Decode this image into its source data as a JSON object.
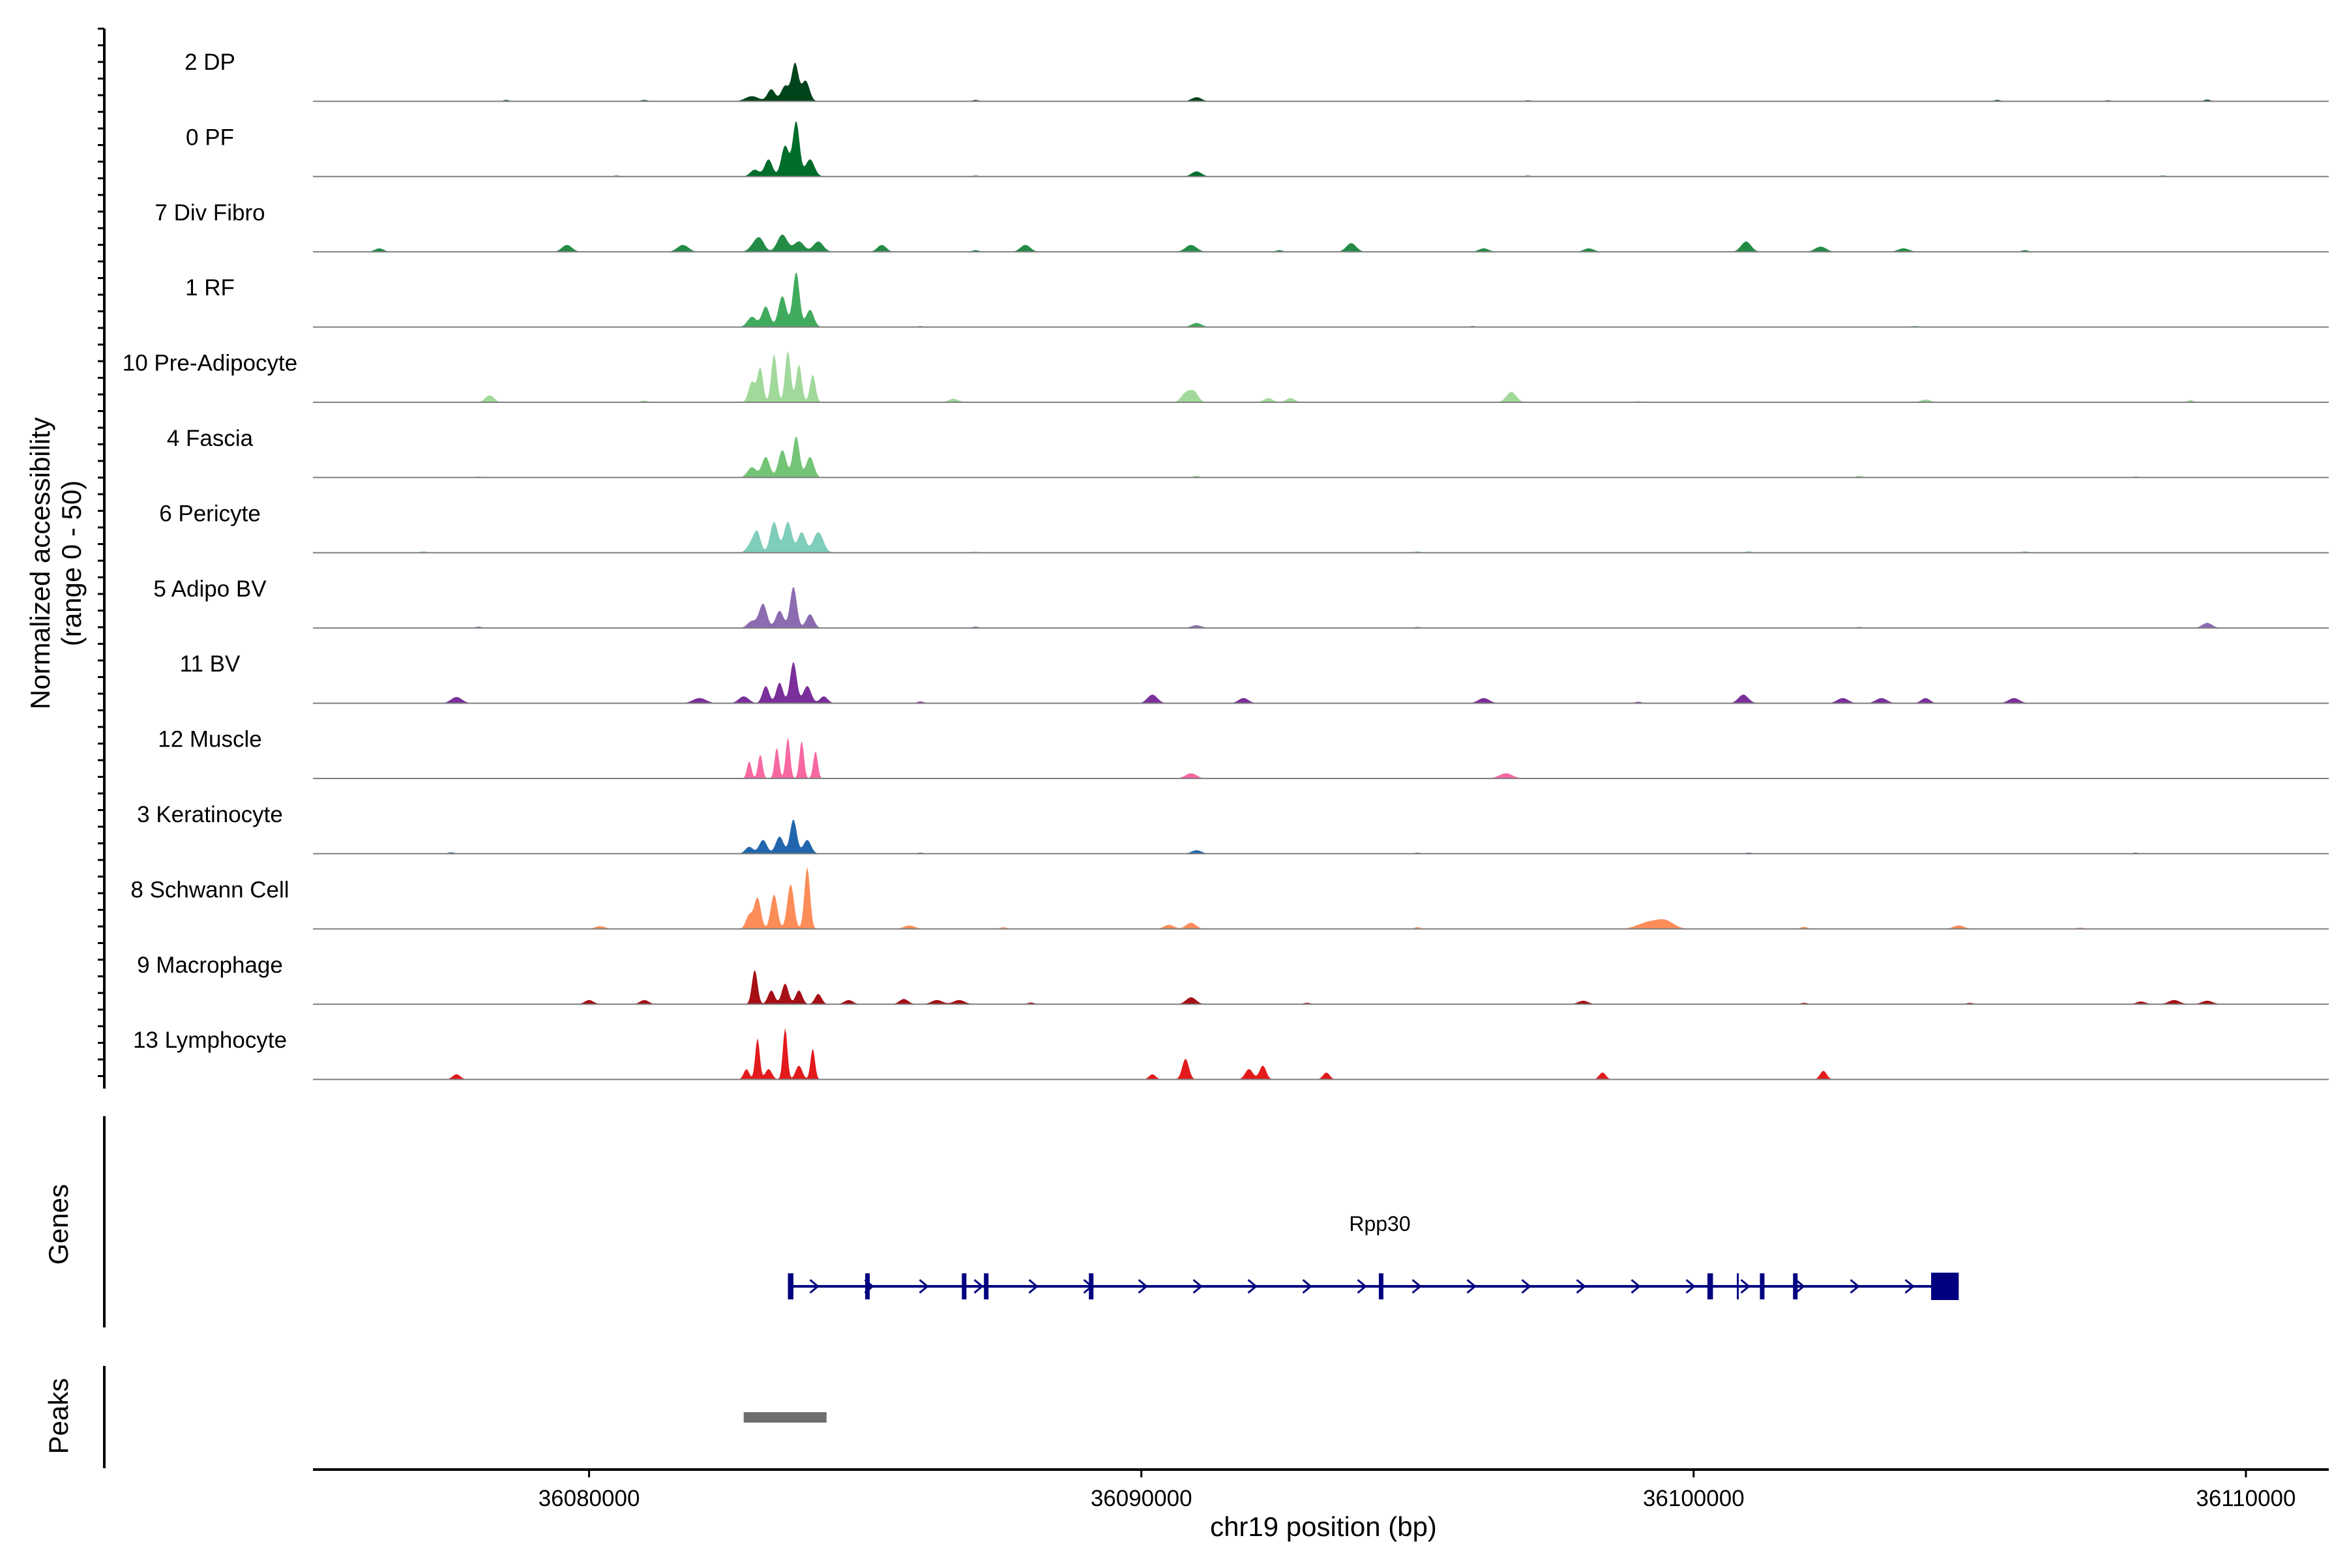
{
  "chart_data": {
    "type": "area",
    "chromosome": "chr19",
    "xlabel": "chr19 position (bp)",
    "ylabel_line1": "Normalized accessibility",
    "ylabel_line2": "(range 0 - 50)",
    "y_range": [
      0,
      50
    ],
    "x_range": [
      36075000,
      36111500
    ],
    "x_ticks": [
      {
        "value": 36080000,
        "label": "36080000"
      },
      {
        "value": 36090000,
        "label": "36090000"
      },
      {
        "value": 36100000,
        "label": "36100000"
      },
      {
        "value": 36110000,
        "label": "36110000"
      }
    ],
    "tracks_title": "Genes",
    "peaks_title": "Peaks",
    "series": [
      {
        "name": "2 DP",
        "color": "#00441b",
        "peaks": [
          [
            36083300,
            3.5,
            70
          ],
          [
            36083550,
            4.5,
            70
          ],
          [
            36083730,
            11,
            60
          ],
          [
            36083920,
            6,
            70
          ],
          [
            36082950,
            1.5,
            120
          ],
          [
            36091000,
            1.2,
            90
          ]
        ],
        "noise": [
          [
            36078500,
            0.4
          ],
          [
            36081000,
            0.4
          ],
          [
            36087000,
            0.4
          ],
          [
            36097000,
            0.3
          ],
          [
            36105500,
            0.4
          ],
          [
            36107500,
            0.3
          ],
          [
            36109300,
            0.5
          ]
        ]
      },
      {
        "name": "0 PF",
        "color": "#006d2c",
        "peaks": [
          [
            36083250,
            5,
            70
          ],
          [
            36083550,
            9,
            70
          ],
          [
            36083750,
            16,
            60
          ],
          [
            36084000,
            5,
            80
          ],
          [
            36083000,
            2,
            80
          ],
          [
            36091000,
            1.5,
            90
          ]
        ],
        "noise": [
          [
            36080500,
            0.3
          ],
          [
            36087000,
            0.3
          ],
          [
            36097000,
            0.3
          ],
          [
            36108500,
            0.3
          ]
        ]
      },
      {
        "name": "7 Div Fibro",
        "color": "#238b45",
        "peaks": [
          [
            36083100,
            3,
            80
          ],
          [
            36083500,
            5,
            90
          ],
          [
            36083800,
            3,
            90
          ],
          [
            36084150,
            3,
            90
          ],
          [
            36079600,
            2,
            90
          ],
          [
            36081700,
            2,
            100
          ],
          [
            36083000,
            2,
            90
          ],
          [
            36085300,
            2,
            80
          ],
          [
            36087900,
            2,
            90
          ],
          [
            36090900,
            2,
            100
          ],
          [
            36093800,
            2.5,
            90
          ],
          [
            36100950,
            3,
            90
          ],
          [
            36102300,
            1.5,
            100
          ],
          [
            36076200,
            1,
            80
          ],
          [
            36096200,
            1,
            90
          ],
          [
            36098100,
            1,
            90
          ],
          [
            36103800,
            1,
            100
          ]
        ],
        "noise": [
          [
            36087000,
            0.5
          ],
          [
            36092500,
            0.5
          ],
          [
            36106000,
            0.5
          ]
        ]
      },
      {
        "name": "1 RF",
        "color": "#41ab5d",
        "peaks": [
          [
            36083200,
            6,
            70
          ],
          [
            36083500,
            9,
            70
          ],
          [
            36083750,
            16,
            60
          ],
          [
            36084000,
            5,
            70
          ],
          [
            36082950,
            3,
            80
          ],
          [
            36091000,
            1.2,
            90
          ]
        ],
        "noise": [
          [
            36086000,
            0.3
          ],
          [
            36096000,
            0.3
          ],
          [
            36104000,
            0.3
          ]
        ]
      },
      {
        "name": "10 Pre-Adipocyte",
        "color": "#a1d99b",
        "peaks": [
          [
            36083100,
            10,
            50
          ],
          [
            36083350,
            14,
            50
          ],
          [
            36083600,
            15,
            50
          ],
          [
            36083800,
            11,
            50
          ],
          [
            36084050,
            8,
            50
          ],
          [
            36082950,
            6,
            60
          ],
          [
            36078200,
            2,
            80
          ],
          [
            36090800,
            2.5,
            80
          ],
          [
            36090950,
            3,
            80
          ],
          [
            36092300,
            1.2,
            80
          ],
          [
            36092700,
            1.2,
            80
          ],
          [
            36096700,
            3,
            90
          ],
          [
            36086600,
            1,
            90
          ],
          [
            36104200,
            0.8,
            90
          ]
        ],
        "noise": [
          [
            36081000,
            0.5
          ],
          [
            36099000,
            0.3
          ],
          [
            36109000,
            0.6
          ]
        ]
      },
      {
        "name": "4 Fascia",
        "color": "#74c476",
        "peaks": [
          [
            36083200,
            6,
            70
          ],
          [
            36083500,
            8,
            70
          ],
          [
            36083750,
            12,
            60
          ],
          [
            36084000,
            6,
            70
          ],
          [
            36082950,
            3,
            80
          ]
        ],
        "noise": [
          [
            36078000,
            0.3
          ],
          [
            36091000,
            0.4
          ],
          [
            36103000,
            0.4
          ],
          [
            36108000,
            0.3
          ]
        ]
      },
      {
        "name": "6 Pericyte",
        "color": "#7fcdbb",
        "peaks": [
          [
            36083050,
            5,
            60
          ],
          [
            36083350,
            9,
            70
          ],
          [
            36083600,
            9,
            70
          ],
          [
            36083850,
            6,
            70
          ],
          [
            36084150,
            6,
            90
          ],
          [
            36082950,
            3,
            80
          ]
        ],
        "noise": [
          [
            36077000,
            0.4
          ],
          [
            36087000,
            0.3
          ],
          [
            36095000,
            0.4
          ],
          [
            36101000,
            0.4
          ],
          [
            36106000,
            0.4
          ]
        ]
      },
      {
        "name": "5 Adipo BV",
        "color": "#8c6bb1",
        "peaks": [
          [
            36083150,
            7,
            70
          ],
          [
            36083450,
            5,
            70
          ],
          [
            36083700,
            12,
            60
          ],
          [
            36084000,
            4,
            70
          ],
          [
            36082950,
            2,
            80
          ],
          [
            36109300,
            1.5,
            90
          ],
          [
            36091000,
            0.8,
            90
          ]
        ],
        "noise": [
          [
            36078000,
            0.4
          ],
          [
            36087000,
            0.4
          ],
          [
            36095000,
            0.3
          ],
          [
            36103000,
            0.3
          ]
        ]
      },
      {
        "name": "11 BV",
        "color": "#7a2f9a",
        "peaks": [
          [
            36082800,
            2,
            90
          ],
          [
            36083200,
            5,
            60
          ],
          [
            36083450,
            6,
            60
          ],
          [
            36083700,
            12,
            60
          ],
          [
            36083950,
            5,
            70
          ],
          [
            36084250,
            2,
            70
          ],
          [
            36077600,
            1.8,
            100
          ],
          [
            36082000,
            1.5,
            120
          ],
          [
            36090200,
            2.5,
            90
          ],
          [
            36091850,
            1.5,
            90
          ],
          [
            36096200,
            1.5,
            100
          ],
          [
            36100900,
            2.5,
            90
          ],
          [
            36102700,
            1.5,
            100
          ],
          [
            36103400,
            1.5,
            100
          ],
          [
            36105800,
            1.5,
            100
          ],
          [
            36104200,
            1.5,
            80
          ]
        ],
        "noise": [
          [
            36086000,
            0.5
          ],
          [
            36099000,
            0.4
          ]
        ]
      },
      {
        "name": "12 Muscle",
        "color": "#f768a1",
        "peaks": [
          [
            36082900,
            5,
            40
          ],
          [
            36083100,
            7,
            40
          ],
          [
            36083400,
            9,
            40
          ],
          [
            36083600,
            12,
            40
          ],
          [
            36083850,
            11,
            40
          ],
          [
            36084100,
            8,
            40
          ],
          [
            36090900,
            1.5,
            100
          ],
          [
            36096600,
            1.5,
            120
          ]
        ],
        "noise": []
      },
      {
        "name": "3 Keratinocyte",
        "color": "#2166ac",
        "peaks": [
          [
            36083150,
            4,
            70
          ],
          [
            36083450,
            5,
            70
          ],
          [
            36083700,
            10,
            60
          ],
          [
            36083950,
            4,
            70
          ],
          [
            36082900,
            2,
            70
          ],
          [
            36091000,
            1,
            90
          ]
        ],
        "noise": [
          [
            36077500,
            0.4
          ],
          [
            36086000,
            0.3
          ],
          [
            36095000,
            0.3
          ],
          [
            36101000,
            0.3
          ],
          [
            36108000,
            0.3
          ]
        ]
      },
      {
        "name": "8 Schwann Cell",
        "color": "#fc8d59",
        "peaks": [
          [
            36083050,
            9,
            60
          ],
          [
            36083350,
            10,
            60
          ],
          [
            36083650,
            13,
            60
          ],
          [
            36083950,
            18,
            50
          ],
          [
            36082900,
            4,
            60
          ],
          [
            36090500,
            1.2,
            90
          ],
          [
            36090900,
            1.8,
            90
          ],
          [
            36099200,
            2,
            200
          ],
          [
            36099500,
            2,
            150
          ],
          [
            36104800,
            1,
            100
          ],
          [
            36085800,
            1,
            100
          ],
          [
            36080200,
            0.8,
            90
          ]
        ],
        "noise": [
          [
            36087500,
            0.5
          ],
          [
            36095000,
            0.5
          ],
          [
            36102000,
            0.6
          ],
          [
            36107000,
            0.4
          ]
        ]
      },
      {
        "name": "9 Macrophage",
        "color": "#a50f15",
        "peaks": [
          [
            36083000,
            10,
            50
          ],
          [
            36083300,
            4,
            60
          ],
          [
            36083550,
            6,
            60
          ],
          [
            36083800,
            4,
            60
          ],
          [
            36084150,
            3,
            60
          ],
          [
            36080000,
            1.2,
            80
          ],
          [
            36081000,
            1.2,
            80
          ],
          [
            36085700,
            1.5,
            80
          ],
          [
            36086300,
            1.2,
            100
          ],
          [
            36086700,
            1.2,
            100
          ],
          [
            36090900,
            2,
            90
          ],
          [
            36098000,
            1,
            90
          ],
          [
            36108700,
            1.2,
            100
          ],
          [
            36109300,
            1,
            100
          ],
          [
            36108100,
            0.8,
            80
          ],
          [
            36084700,
            1.2,
            80
          ]
        ],
        "noise": [
          [
            36088000,
            0.5
          ],
          [
            36093000,
            0.4
          ],
          [
            36102000,
            0.4
          ],
          [
            36105000,
            0.4
          ]
        ]
      },
      {
        "name": "13 Lymphocyte",
        "color": "#e31a1c",
        "peaks": [
          [
            36082850,
            3,
            50
          ],
          [
            36083050,
            12,
            40
          ],
          [
            36083250,
            3,
            60
          ],
          [
            36083550,
            15,
            40
          ],
          [
            36083800,
            4,
            60
          ],
          [
            36084050,
            9,
            40
          ],
          [
            36077600,
            1.5,
            70
          ],
          [
            36090200,
            1.5,
            60
          ],
          [
            36090800,
            6,
            60
          ],
          [
            36091950,
            3,
            70
          ],
          [
            36092200,
            4,
            60
          ],
          [
            36093350,
            2,
            60
          ],
          [
            36098350,
            2,
            60
          ],
          [
            36102350,
            2.5,
            60
          ]
        ],
        "noise": []
      }
    ],
    "genes": [
      {
        "name": "Rpp30",
        "start": 36083600,
        "end": 36104800,
        "strand": "+",
        "exons": [
          [
            36083600,
            36083700
          ],
          [
            36085000,
            36085050
          ],
          [
            36086750,
            36086800
          ],
          [
            36087150,
            36087200
          ],
          [
            36089050,
            36089100
          ],
          [
            36094300,
            36094380
          ],
          [
            36100250,
            36100350
          ],
          [
            36101200,
            36101230
          ],
          [
            36101800,
            36101880
          ],
          [
            36104300,
            36104800
          ]
        ],
        "thin_marks": [
          36100800
        ]
      }
    ],
    "peak_regions": [
      {
        "start": 36082800,
        "end": 36084300
      }
    ],
    "colors": {
      "gene": "#000080",
      "peak": "#6e6e6e",
      "baseline": "#7f7f7f"
    }
  }
}
